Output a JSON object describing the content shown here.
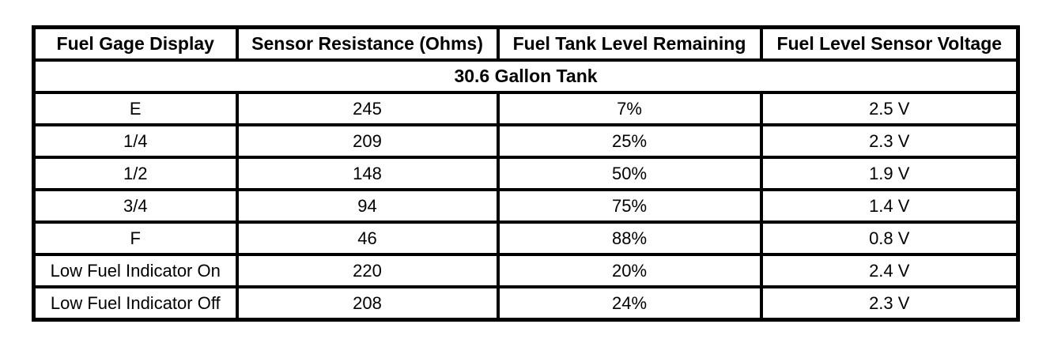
{
  "table": {
    "headers": [
      "Fuel Gage Display",
      "Sensor Resistance (Ohms)",
      "Fuel Tank Level Remaining",
      "Fuel Level Sensor Voltage"
    ],
    "span_row": "30.6 Gallon Tank",
    "rows": [
      [
        "E",
        "245",
        "7%",
        "2.5 V"
      ],
      [
        "1/4",
        "209",
        "25%",
        "2.3 V"
      ],
      [
        "1/2",
        "148",
        "50%",
        "1.9 V"
      ],
      [
        "3/4",
        "94",
        "75%",
        "1.4 V"
      ],
      [
        "F",
        "46",
        "88%",
        "0.8 V"
      ],
      [
        "Low Fuel Indicator On",
        "220",
        "20%",
        "2.4 V"
      ],
      [
        "Low Fuel Indicator Off",
        "208",
        "24%",
        "2.3 V"
      ]
    ]
  },
  "colors": {
    "border": "#000000",
    "background": "#ffffff",
    "text": "#000000"
  },
  "chart_data": {
    "type": "table",
    "title": "30.6 Gallon Tank",
    "columns": [
      "Fuel Gage Display",
      "Sensor Resistance (Ohms)",
      "Fuel Tank Level Remaining",
      "Fuel Level Sensor Voltage"
    ],
    "rows": [
      {
        "display": "E",
        "resistance_ohms": 245,
        "level_percent": 7,
        "voltage_v": 2.5
      },
      {
        "display": "1/4",
        "resistance_ohms": 209,
        "level_percent": 25,
        "voltage_v": 2.3
      },
      {
        "display": "1/2",
        "resistance_ohms": 148,
        "level_percent": 50,
        "voltage_v": 1.9
      },
      {
        "display": "3/4",
        "resistance_ohms": 94,
        "level_percent": 75,
        "voltage_v": 1.4
      },
      {
        "display": "F",
        "resistance_ohms": 46,
        "level_percent": 88,
        "voltage_v": 0.8
      },
      {
        "display": "Low Fuel Indicator On",
        "resistance_ohms": 220,
        "level_percent": 20,
        "voltage_v": 2.4
      },
      {
        "display": "Low Fuel Indicator Off",
        "resistance_ohms": 208,
        "level_percent": 24,
        "voltage_v": 2.3
      }
    ]
  }
}
